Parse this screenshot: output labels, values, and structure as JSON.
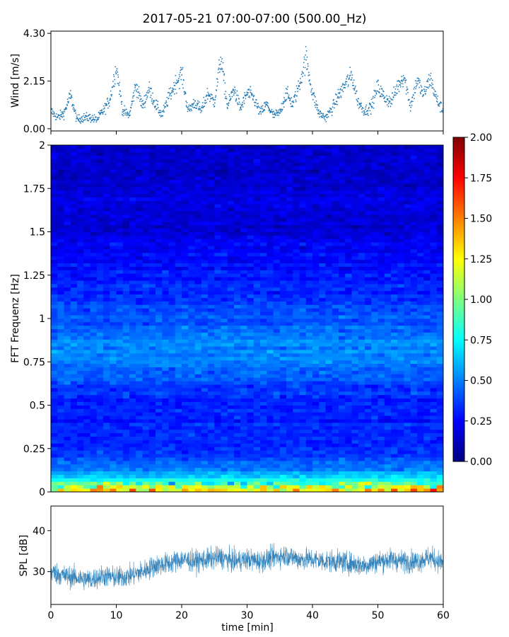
{
  "title": "2017-05-21 07:00-07:00 (500.00_Hz)",
  "colors": {
    "wind_points": "#1f77b4",
    "spl_line": "#1f77b4",
    "axis": "#000000",
    "background": "#ffffff"
  },
  "chart_data": [
    {
      "type": "scatter",
      "panel": "wind",
      "title": "2017-05-21 07:00-07:00 (500.00_Hz)",
      "xlabel": "",
      "ylabel": "Wind [m/s]",
      "xlim": [
        0,
        60
      ],
      "ylim": [
        -0.1,
        4.4
      ],
      "yticks": [
        0.0,
        2.15,
        4.3
      ],
      "ytick_labels": [
        "0.00",
        "2.15",
        "4.30"
      ],
      "x": [
        0,
        1,
        2,
        3,
        4,
        5,
        6,
        7,
        8,
        9,
        10,
        11,
        12,
        13,
        14,
        15,
        16,
        17,
        18,
        19,
        20,
        21,
        22,
        23,
        24,
        25,
        26,
        27,
        28,
        29,
        30,
        31,
        32,
        33,
        34,
        35,
        36,
        37,
        38,
        39,
        40,
        41,
        42,
        43,
        44,
        45,
        46,
        47,
        48,
        49,
        50,
        51,
        52,
        53,
        54,
        55,
        56,
        57,
        58,
        59,
        60
      ],
      "y": [
        0.8,
        0.5,
        0.7,
        1.5,
        0.4,
        0.5,
        0.5,
        0.4,
        0.8,
        1.3,
        2.8,
        0.8,
        0.6,
        2.0,
        1.0,
        1.8,
        1.1,
        0.6,
        1.4,
        2.0,
        2.5,
        0.8,
        1.2,
        0.8,
        1.6,
        1.2,
        3.2,
        1.0,
        1.8,
        0.9,
        1.6,
        1.4,
        0.7,
        1.1,
        0.6,
        0.7,
        1.6,
        1.1,
        2.0,
        3.2,
        1.6,
        0.7,
        0.5,
        0.9,
        1.5,
        2.0,
        2.4,
        1.2,
        0.8,
        1.0,
        1.9,
        1.4,
        1.2,
        1.9,
        2.4,
        1.0,
        2.2,
        1.5,
        2.3,
        1.3,
        0.8
      ]
    },
    {
      "type": "heatmap",
      "panel": "spectrogram",
      "xlabel": "",
      "ylabel": "FFT Frequenz [Hz]",
      "xlim": [
        0,
        60
      ],
      "ylim": [
        0,
        2
      ],
      "yticks": [
        0,
        0.25,
        0.5,
        0.75,
        1,
        1.25,
        1.5,
        1.75,
        2
      ],
      "ytick_labels": [
        "0",
        "0.25",
        "0.5",
        "0.75",
        "1",
        "1.25",
        "1.5",
        "1.75",
        "2"
      ],
      "colormap": "jet",
      "color_range": [
        0.0,
        2.0
      ],
      "colorbar_ticks": [
        "0.00",
        "0.25",
        "0.50",
        "0.75",
        "1.00",
        "1.25",
        "1.50",
        "1.75",
        "2.00"
      ],
      "frequency_bands": [
        {
          "freq": 0.02,
          "typical_value": 1.3
        },
        {
          "freq": 0.05,
          "typical_value": 0.9
        },
        {
          "freq": 0.1,
          "typical_value": 0.6
        },
        {
          "freq": 0.2,
          "typical_value": 0.35
        },
        {
          "freq": 0.5,
          "typical_value": 0.3
        },
        {
          "freq": 0.85,
          "typical_value": 0.55
        },
        {
          "freq": 1.0,
          "typical_value": 0.4
        },
        {
          "freq": 1.5,
          "typical_value": 0.2
        },
        {
          "freq": 2.0,
          "typical_value": 0.15
        }
      ]
    },
    {
      "type": "line",
      "panel": "spl",
      "xlabel": "time [min]",
      "ylabel": "SPL [dB]",
      "xlim": [
        0,
        60
      ],
      "ylim": [
        22,
        46
      ],
      "yticks": [
        30,
        40
      ],
      "ytick_labels": [
        "30",
        "40"
      ],
      "xticks": [
        0,
        10,
        20,
        30,
        40,
        50,
        60
      ],
      "xtick_labels": [
        "0",
        "10",
        "20",
        "30",
        "40",
        "50",
        "60"
      ],
      "x": [
        0,
        2,
        4,
        6,
        8,
        10,
        12,
        14,
        16,
        18,
        20,
        22,
        24,
        26,
        28,
        30,
        32,
        34,
        36,
        38,
        40,
        42,
        44,
        46,
        48,
        50,
        52,
        54,
        56,
        58,
        60
      ],
      "y": [
        30,
        29,
        28.5,
        28,
        29,
        28.5,
        29,
        30,
        31.5,
        32,
        33,
        32.5,
        33,
        33.5,
        32.5,
        33,
        32.5,
        33.5,
        34,
        33,
        33,
        32.5,
        32.5,
        32,
        31.5,
        32.5,
        33,
        32.5,
        32.5,
        33.5,
        32
      ]
    }
  ]
}
